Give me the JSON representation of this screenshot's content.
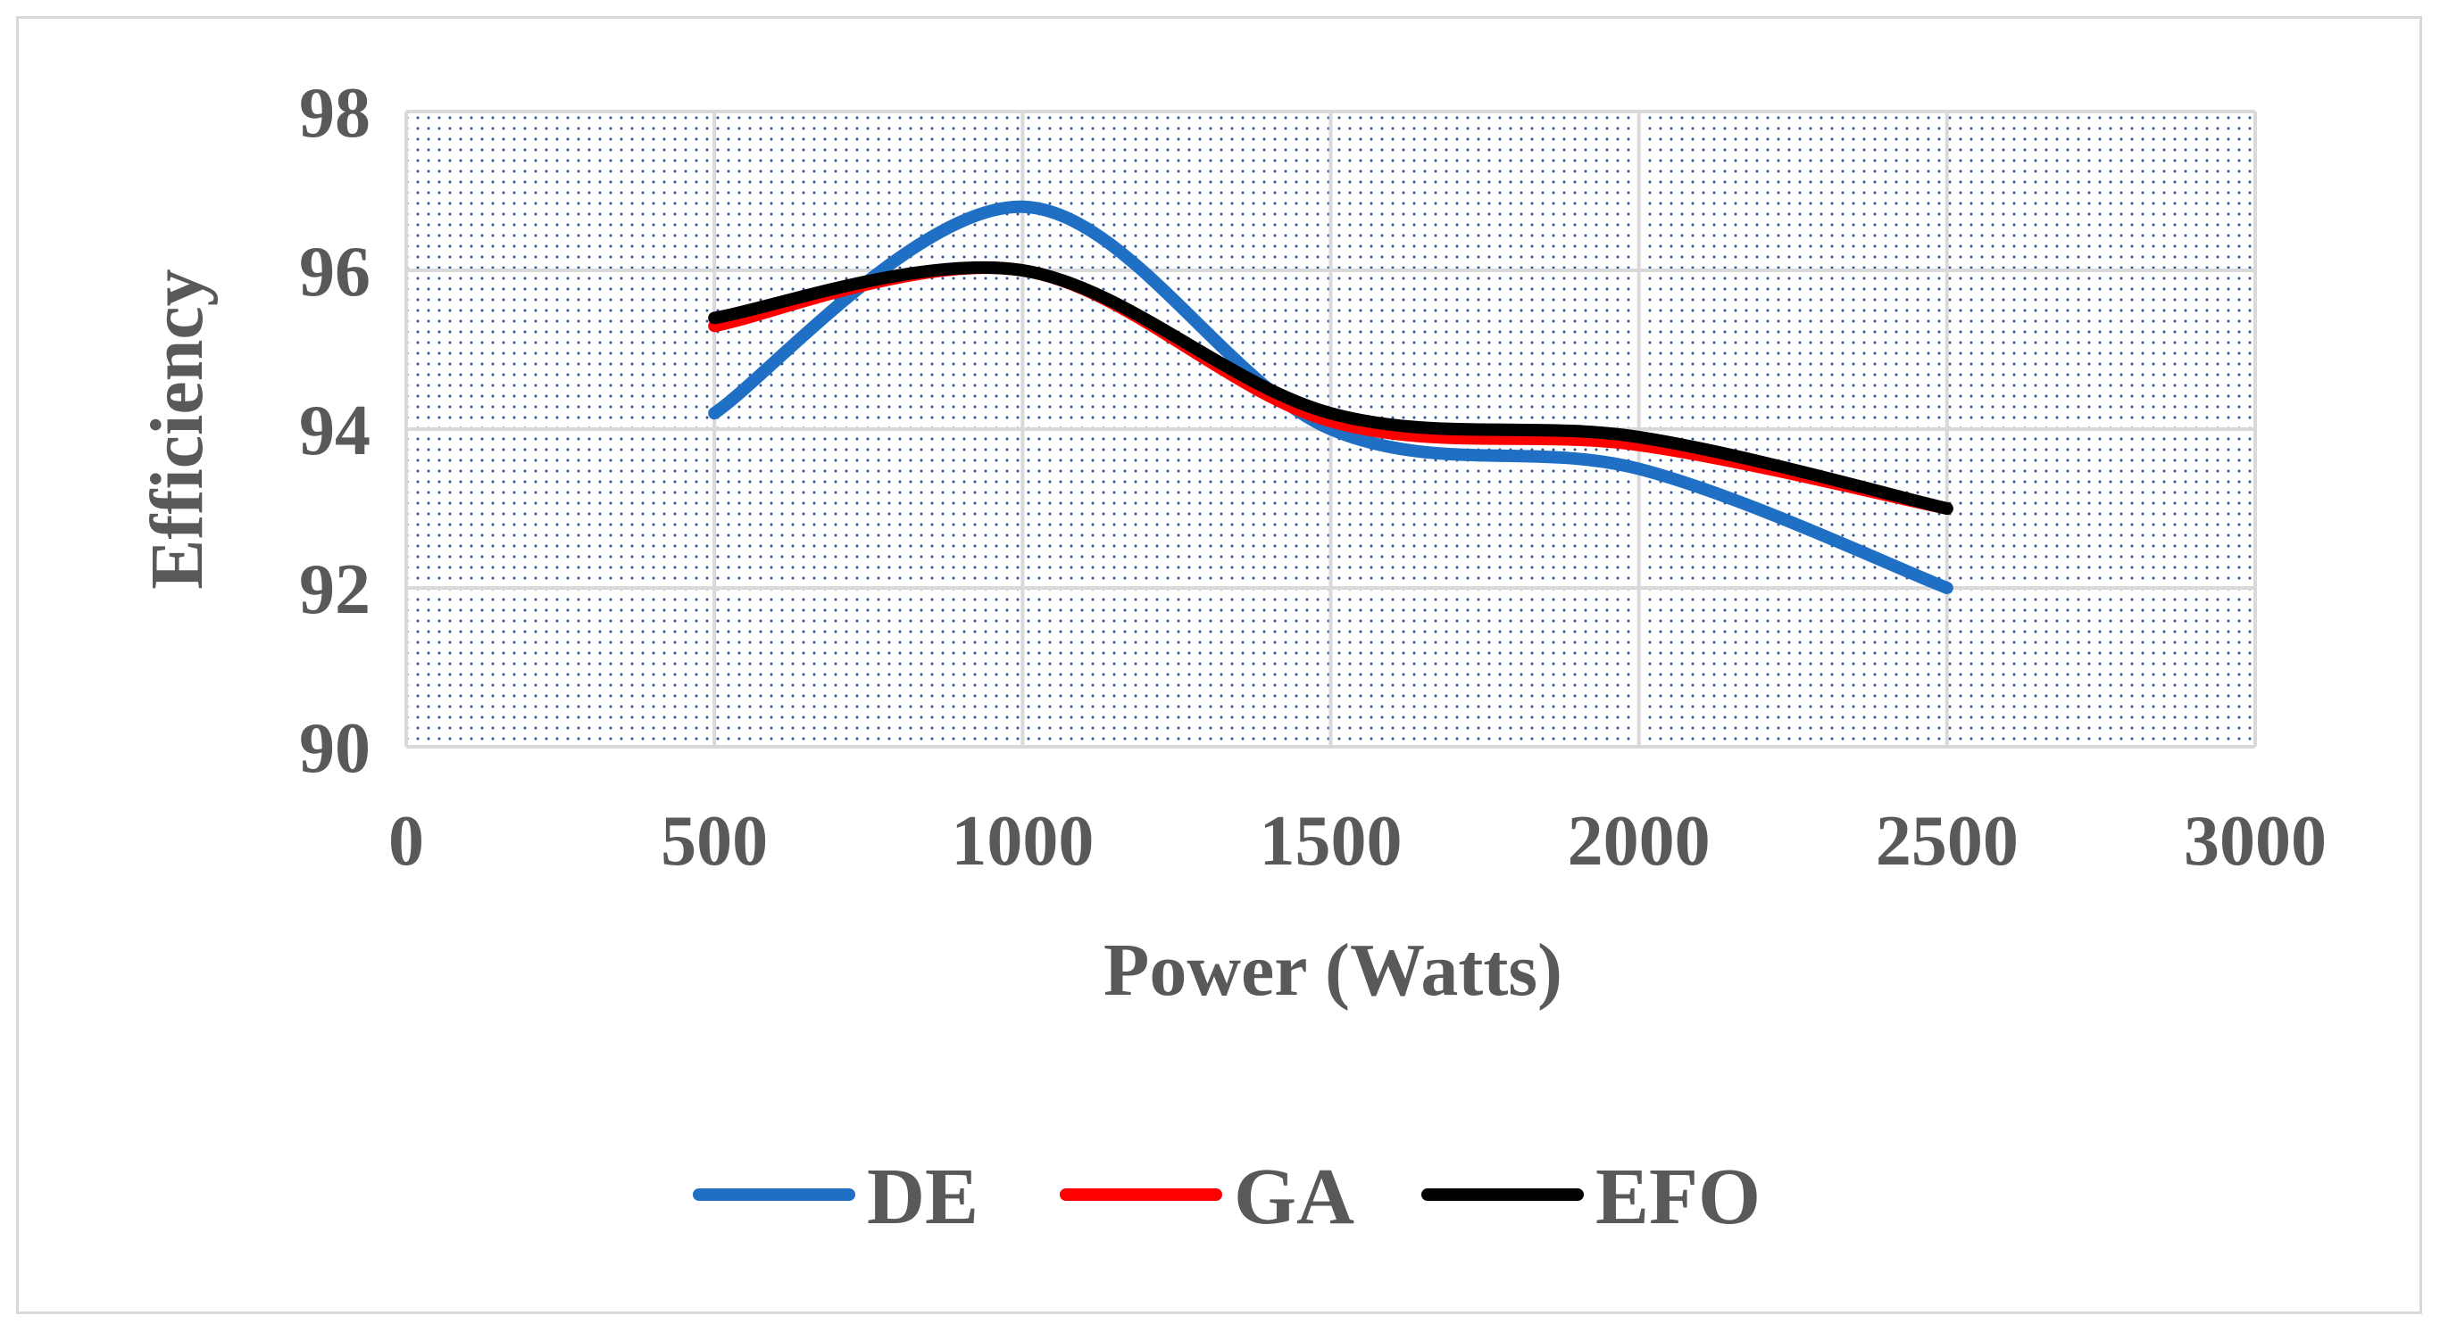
{
  "chart_data": {
    "type": "line",
    "title": "",
    "xlabel": "Power (Watts)",
    "ylabel": "Efficiency",
    "xlim": [
      0,
      3000
    ],
    "ylim": [
      90,
      98
    ],
    "xticks": [
      0,
      500,
      1000,
      1500,
      2000,
      2500,
      3000
    ],
    "yticks": [
      90,
      92,
      94,
      96,
      98
    ],
    "xtick_labels": [
      "0",
      "500",
      "1000",
      "1500",
      "2000",
      "2500",
      "3000"
    ],
    "ytick_labels": [
      "90",
      "92",
      "94",
      "96",
      "98"
    ],
    "grid": true,
    "smooth": true,
    "legend_position": "bottom",
    "x": [
      500,
      1000,
      1500,
      2000,
      2500
    ],
    "series": [
      {
        "name": "DE",
        "color": "#1f6fc5",
        "values": [
          94.2,
          96.8,
          94.0,
          93.5,
          92.0
        ]
      },
      {
        "name": "GA",
        "color": "#ff0000",
        "values": [
          95.3,
          96.0,
          94.1,
          93.8,
          93.0
        ]
      },
      {
        "name": "EFO",
        "color": "#000000",
        "values": [
          95.4,
          96.0,
          94.2,
          93.9,
          93.0
        ]
      }
    ]
  }
}
